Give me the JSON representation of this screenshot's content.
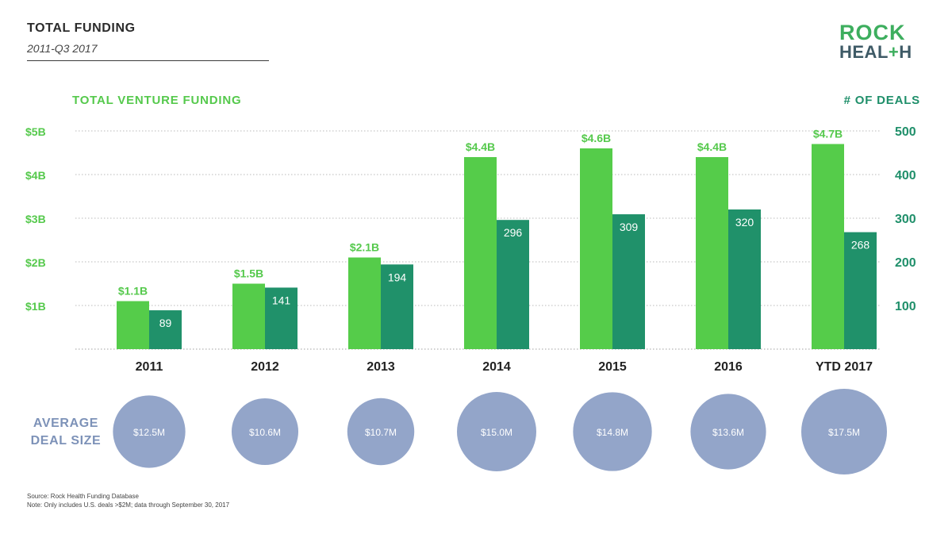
{
  "header": {
    "title": "TOTAL FUNDING",
    "subtitle": "2011-Q3 2017"
  },
  "logo": {
    "line1": "ROCK",
    "line2_a": "HEAL",
    "line2_plus": "+",
    "line2_b": "H"
  },
  "colors": {
    "funding_bar": "#55cc4a",
    "deals_bar": "#20916a",
    "bubble": "#93a5c9",
    "funding_text": "#55c94c",
    "deals_text": "#1f8f6a"
  },
  "chart_data": {
    "type": "bar",
    "left_axis_title": "TOTAL VENTURE FUNDING",
    "right_axis_title": "# OF DEALS",
    "categories": [
      "2011",
      "2012",
      "2013",
      "2014",
      "2015",
      "2016",
      "YTD 2017"
    ],
    "left_ticks": [
      "$1B",
      "$2B",
      "$3B",
      "$4B",
      "$5B"
    ],
    "right_ticks": [
      "100",
      "200",
      "300",
      "400",
      "500"
    ],
    "left_ylim": [
      0,
      5
    ],
    "right_ylim": [
      0,
      500
    ],
    "grid": true,
    "series": [
      {
        "name": "TOTAL VENTURE FUNDING",
        "axis": "left",
        "values": [
          1.1,
          1.5,
          2.1,
          4.4,
          4.6,
          4.4,
          4.7
        ],
        "labels": [
          "$1.1B",
          "$1.5B",
          "$2.1B",
          "$4.4B",
          "$4.6B",
          "$4.4B",
          "$4.7B"
        ]
      },
      {
        "name": "# OF DEALS",
        "axis": "right",
        "values": [
          89,
          141,
          194,
          296,
          309,
          320,
          268
        ],
        "labels": [
          "89",
          "141",
          "194",
          "296",
          "309",
          "320",
          "268"
        ]
      }
    ],
    "average_deal_size": {
      "label_line1": "AVERAGE",
      "label_line2": "DEAL SIZE",
      "values": [
        12.5,
        10.6,
        10.7,
        15.0,
        14.8,
        13.6,
        17.5
      ],
      "labels": [
        "$12.5M",
        "$10.6M",
        "$10.7M",
        "$15.0M",
        "$14.8M",
        "$13.6M",
        "$17.5M"
      ]
    }
  },
  "footer": {
    "source": "Source: Rock Health Funding Database",
    "note": "Note: Only includes U.S. deals >$2M; data through September 30, 2017"
  }
}
